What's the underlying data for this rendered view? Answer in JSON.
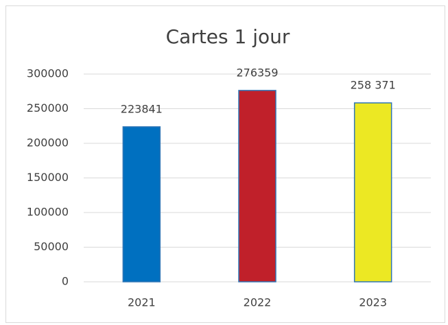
{
  "chart_data": {
    "type": "bar",
    "title": "Cartes 1 jour",
    "categories": [
      "2021",
      "2022",
      "2023"
    ],
    "values": [
      223841,
      276359,
      258371
    ],
    "value_labels": [
      "223841",
      "276359",
      "258 371"
    ],
    "colors": [
      "#0070c0",
      "#c0202a",
      "#ece823"
    ],
    "ylim": [
      0,
      300000
    ],
    "yticks": [
      0,
      50000,
      100000,
      150000,
      200000,
      250000,
      300000
    ],
    "grid": true
  }
}
